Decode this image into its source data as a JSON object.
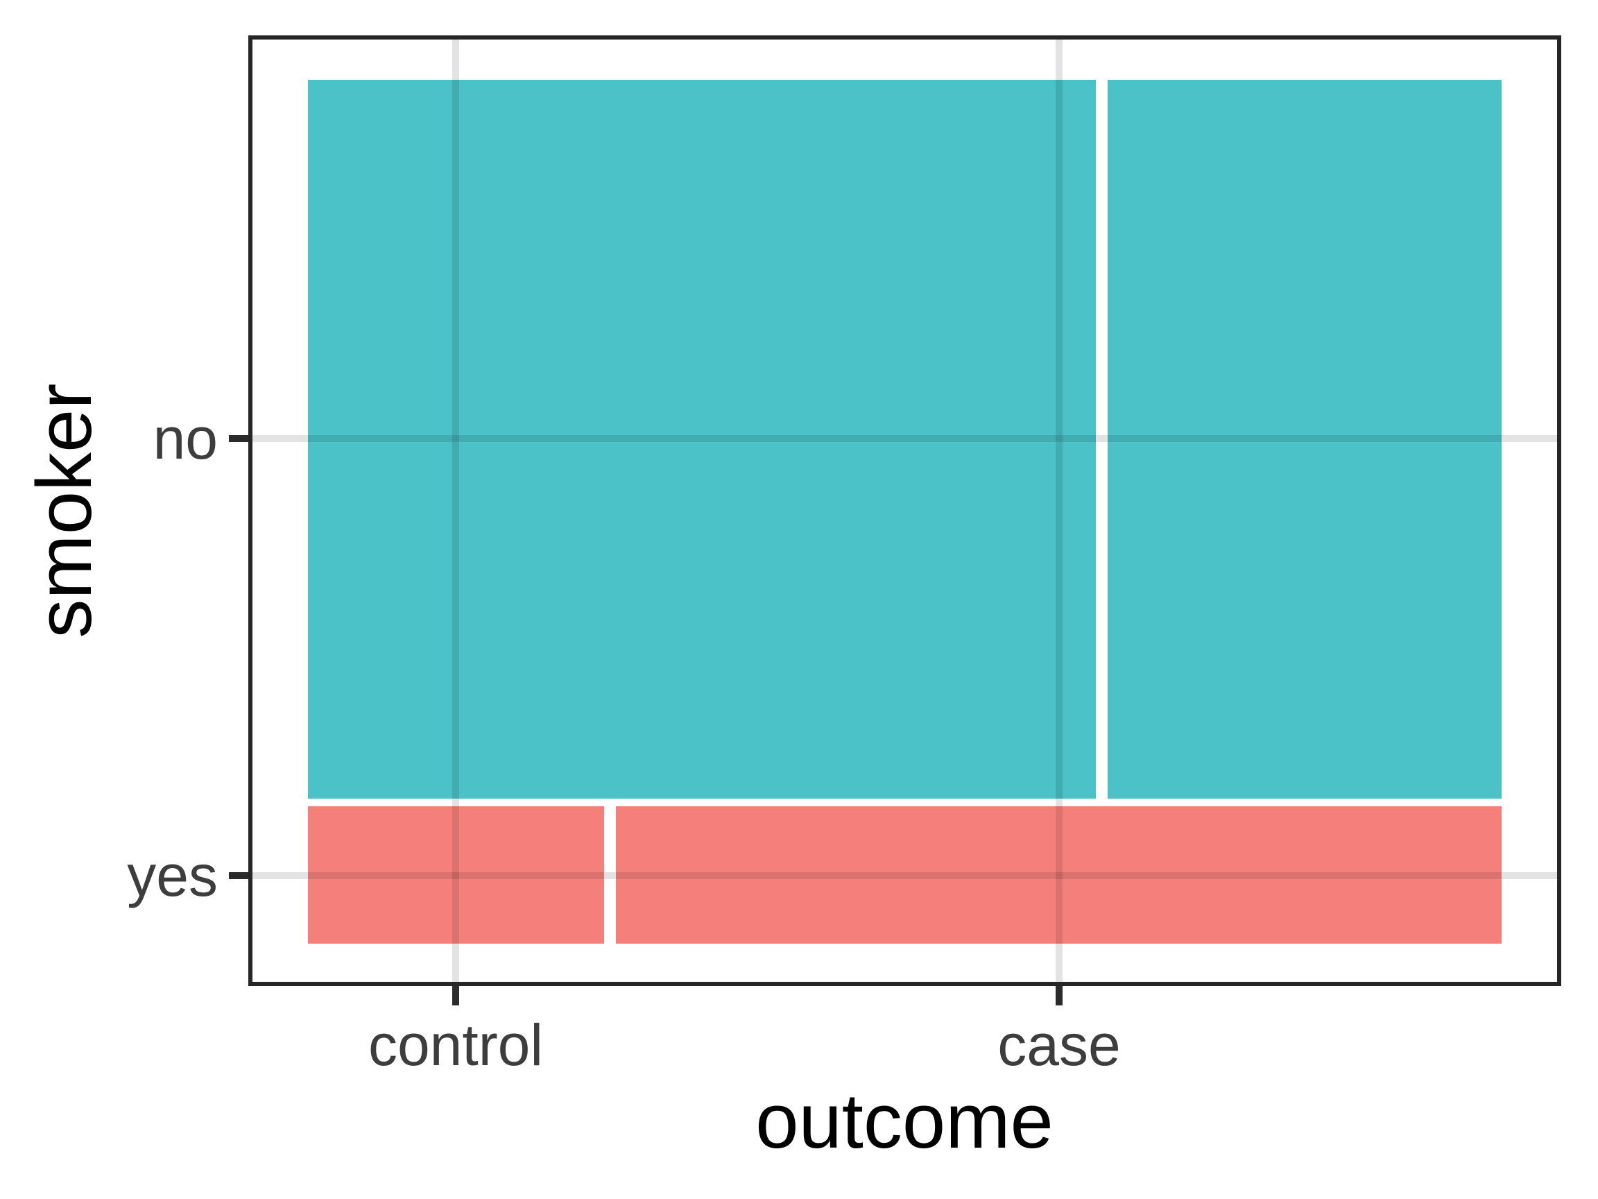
{
  "chart_data": {
    "type": "mosaic",
    "title": "",
    "xlabel": "outcome",
    "ylabel": "smoker",
    "x_categories": [
      "control",
      "case"
    ],
    "y_categories": [
      "no",
      "yes"
    ],
    "colors": {
      "no": "#4AC2C8",
      "yes": "#F5807B"
    },
    "row_fractions": {
      "no": 0.83,
      "yes": 0.16
    },
    "col_fractions_within_row": {
      "no": {
        "control": 0.667,
        "case": 0.333
      },
      "yes": {
        "control": 0.251,
        "case": 0.749
      }
    },
    "tiles": [
      {
        "row": "no",
        "col": "control",
        "x0": 0.0,
        "x1": 0.66,
        "y0": 0.0,
        "y1": 0.832
      },
      {
        "row": "no",
        "col": "case",
        "x0": 0.67,
        "x1": 1.0,
        "y0": 0.0,
        "y1": 0.832
      },
      {
        "row": "yes",
        "col": "control",
        "x0": 0.0,
        "x1": 0.248,
        "y0": 0.841,
        "y1": 1.0
      },
      {
        "row": "yes",
        "col": "case",
        "x0": 0.258,
        "x1": 1.0,
        "y0": 0.841,
        "y1": 1.0
      }
    ],
    "x_ticks": [
      {
        "label": "control",
        "pos": 0.124
      },
      {
        "label": "case",
        "pos": 0.629
      }
    ],
    "y_ticks": [
      {
        "label": "no",
        "pos": 0.415
      },
      {
        "label": "yes",
        "pos": 0.921
      }
    ],
    "grid": true,
    "legend": "none"
  },
  "axes": {
    "x_title": "outcome",
    "y_title": "smoker"
  },
  "style": {
    "background": "#FFFFFF",
    "panel_border": "#262626",
    "tick_color": "#2B2B2B",
    "grid_overlay": "rgba(0,0,0,0.11)",
    "axis_text_color": "#3D3D3D",
    "axis_title_color": "#000000"
  }
}
